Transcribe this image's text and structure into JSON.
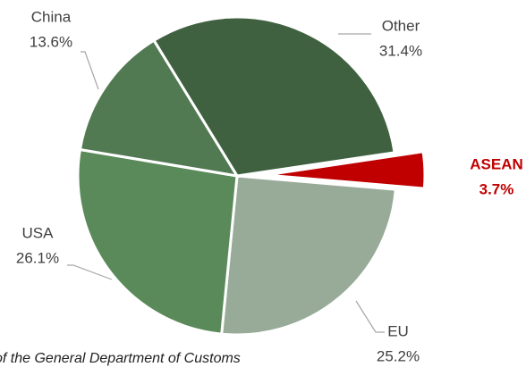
{
  "chart_data": {
    "type": "pie",
    "categories": [
      "Other",
      "ASEAN",
      "EU",
      "USA",
      "China"
    ],
    "values": [
      31.4,
      3.7,
      25.2,
      26.1,
      13.6
    ],
    "value_labels": [
      "31.4%",
      "3.7%",
      "25.2%",
      "26.1%",
      "13.6%"
    ],
    "colors": [
      "#3f6140",
      "#c00000",
      "#98ab98",
      "#5a8a5a",
      "#527a52"
    ],
    "exploded": "ASEAN",
    "source": "of the General Department of Customs"
  }
}
